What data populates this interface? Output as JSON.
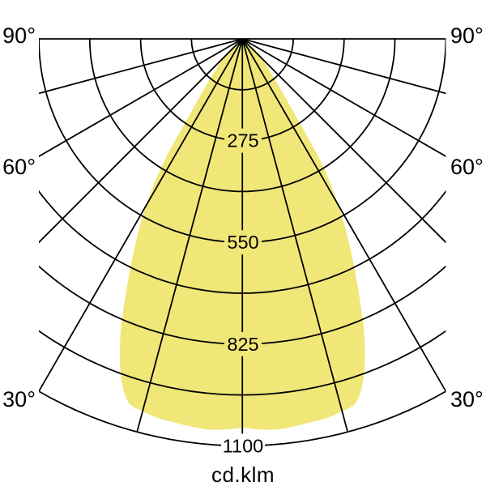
{
  "chart_data": {
    "type": "area",
    "subtype": "polar-photometric-light-distribution",
    "title": "",
    "unit_label": "cd.klm",
    "legend": "none",
    "grid": true,
    "angle_tick_labels": [
      "90°",
      "60°",
      "30°"
    ],
    "angle_tick_positions_deg": [
      90,
      60,
      30
    ],
    "angle_grid_step_deg": 15,
    "radial_tick_labels": [
      "275",
      "550",
      "825",
      "1100"
    ],
    "radial_tick_values": [
      275,
      550,
      825,
      1100
    ],
    "radial_grid_step": 137.5,
    "radial_max": 1100,
    "rings": 8,
    "curve_symmetric": true,
    "curve_points": [
      {
        "angle_deg": 0.0,
        "value": 1052
      },
      {
        "angle_deg": 2.5,
        "value": 1057
      },
      {
        "angle_deg": 5.0,
        "value": 1060
      },
      {
        "angle_deg": 7.5,
        "value": 1057
      },
      {
        "angle_deg": 10.0,
        "value": 1053
      },
      {
        "angle_deg": 12.5,
        "value": 1050
      },
      {
        "angle_deg": 15.0,
        "value": 1042
      },
      {
        "angle_deg": 17.5,
        "value": 1028
      },
      {
        "angle_deg": 20.0,
        "value": 962
      },
      {
        "angle_deg": 22.5,
        "value": 860
      },
      {
        "angle_deg": 25.0,
        "value": 737
      },
      {
        "angle_deg": 27.5,
        "value": 627
      },
      {
        "angle_deg": 30.0,
        "value": 520
      },
      {
        "angle_deg": 32.5,
        "value": 397
      },
      {
        "angle_deg": 35.0,
        "value": 240
      },
      {
        "angle_deg": 37.5,
        "value": 165
      },
      {
        "angle_deg": 40.0,
        "value": 120
      },
      {
        "angle_deg": 42.5,
        "value": 92
      },
      {
        "angle_deg": 45.0,
        "value": 70
      },
      {
        "angle_deg": 47.5,
        "value": 50
      },
      {
        "angle_deg": 50.0,
        "value": 30
      },
      {
        "angle_deg": 52.5,
        "value": 0
      }
    ],
    "colors": {
      "beam_fill": "#F1E778",
      "grid_line": "#000000",
      "text": "#000000",
      "background": "#FFFFFF"
    }
  }
}
